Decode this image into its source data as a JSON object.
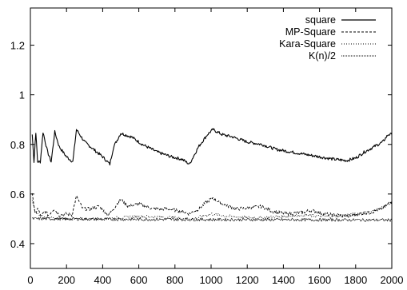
{
  "chart_data": {
    "type": "line",
    "title": "",
    "xlabel": "",
    "ylabel": "",
    "xlim": [
      0,
      2000
    ],
    "ylim": [
      0.3,
      1.35
    ],
    "x_ticks": [
      "0",
      "200",
      "400",
      "600",
      "800",
      "1000",
      "1200",
      "1400",
      "1600",
      "1800",
      "2000"
    ],
    "y_ticks": [
      "0.4",
      "0.6",
      "0.8",
      "1",
      "1.2"
    ],
    "grid": false,
    "legend_position": "top-right",
    "series": [
      {
        "name": "square",
        "style": "solid",
        "color": "#000000",
        "points": [
          [
            10,
            0.84
          ],
          [
            20,
            0.73
          ],
          [
            30,
            0.85
          ],
          [
            40,
            0.73
          ],
          [
            55,
            0.73
          ],
          [
            70,
            0.85
          ],
          [
            95,
            0.77
          ],
          [
            115,
            0.73
          ],
          [
            135,
            0.85
          ],
          [
            160,
            0.79
          ],
          [
            200,
            0.75
          ],
          [
            235,
            0.73
          ],
          [
            255,
            0.86
          ],
          [
            300,
            0.81
          ],
          [
            350,
            0.78
          ],
          [
            400,
            0.75
          ],
          [
            440,
            0.72
          ],
          [
            460,
            0.79
          ],
          [
            500,
            0.845
          ],
          [
            560,
            0.83
          ],
          [
            620,
            0.8
          ],
          [
            700,
            0.77
          ],
          [
            780,
            0.75
          ],
          [
            840,
            0.74
          ],
          [
            880,
            0.72
          ],
          [
            930,
            0.79
          ],
          [
            980,
            0.84
          ],
          [
            1010,
            0.86
          ],
          [
            1060,
            0.84
          ],
          [
            1120,
            0.83
          ],
          [
            1200,
            0.81
          ],
          [
            1280,
            0.8
          ],
          [
            1360,
            0.78
          ],
          [
            1440,
            0.77
          ],
          [
            1520,
            0.76
          ],
          [
            1600,
            0.75
          ],
          [
            1680,
            0.74
          ],
          [
            1750,
            0.735
          ],
          [
            1800,
            0.745
          ],
          [
            1850,
            0.77
          ],
          [
            1900,
            0.79
          ],
          [
            1950,
            0.81
          ],
          [
            1980,
            0.84
          ],
          [
            2000,
            0.84
          ]
        ]
      },
      {
        "name": "MP-Square",
        "style": "dashed",
        "color": "#000000",
        "points": [
          [
            10,
            0.61
          ],
          [
            25,
            0.52
          ],
          [
            40,
            0.54
          ],
          [
            60,
            0.51
          ],
          [
            80,
            0.53
          ],
          [
            100,
            0.515
          ],
          [
            130,
            0.54
          ],
          [
            160,
            0.515
          ],
          [
            200,
            0.52
          ],
          [
            230,
            0.515
          ],
          [
            255,
            0.59
          ],
          [
            290,
            0.54
          ],
          [
            330,
            0.54
          ],
          [
            380,
            0.55
          ],
          [
            430,
            0.515
          ],
          [
            470,
            0.55
          ],
          [
            500,
            0.58
          ],
          [
            540,
            0.55
          ],
          [
            600,
            0.56
          ],
          [
            680,
            0.54
          ],
          [
            760,
            0.54
          ],
          [
            840,
            0.53
          ],
          [
            880,
            0.52
          ],
          [
            930,
            0.54
          ],
          [
            980,
            0.57
          ],
          [
            1010,
            0.585
          ],
          [
            1060,
            0.56
          ],
          [
            1140,
            0.54
          ],
          [
            1220,
            0.545
          ],
          [
            1280,
            0.55
          ],
          [
            1340,
            0.53
          ],
          [
            1420,
            0.52
          ],
          [
            1500,
            0.525
          ],
          [
            1550,
            0.535
          ],
          [
            1620,
            0.52
          ],
          [
            1700,
            0.515
          ],
          [
            1760,
            0.51
          ],
          [
            1820,
            0.52
          ],
          [
            1880,
            0.525
          ],
          [
            1940,
            0.54
          ],
          [
            1980,
            0.56
          ],
          [
            2000,
            0.57
          ]
        ]
      },
      {
        "name": "Kara-Square",
        "style": "dotted",
        "color": "#000000",
        "points": [
          [
            10,
            0.58
          ],
          [
            25,
            0.53
          ],
          [
            40,
            0.52
          ],
          [
            60,
            0.51
          ],
          [
            100,
            0.505
          ],
          [
            150,
            0.5
          ],
          [
            200,
            0.5
          ],
          [
            300,
            0.5
          ],
          [
            400,
            0.5
          ],
          [
            500,
            0.505
          ],
          [
            600,
            0.51
          ],
          [
            800,
            0.505
          ],
          [
            900,
            0.5
          ],
          [
            1000,
            0.52
          ],
          [
            1100,
            0.51
          ],
          [
            1200,
            0.505
          ],
          [
            1300,
            0.505
          ],
          [
            1400,
            0.51
          ],
          [
            1500,
            0.515
          ],
          [
            1600,
            0.51
          ],
          [
            1700,
            0.51
          ],
          [
            1800,
            0.52
          ],
          [
            1900,
            0.53
          ],
          [
            1960,
            0.55
          ],
          [
            2000,
            0.57
          ]
        ]
      },
      {
        "name": "K(n)/2",
        "style": "fine",
        "color": "#000000",
        "points": [
          [
            10,
            0.5
          ],
          [
            100,
            0.5
          ],
          [
            500,
            0.498
          ],
          [
            1000,
            0.497
          ],
          [
            1500,
            0.496
          ],
          [
            2000,
            0.495
          ]
        ]
      }
    ]
  }
}
